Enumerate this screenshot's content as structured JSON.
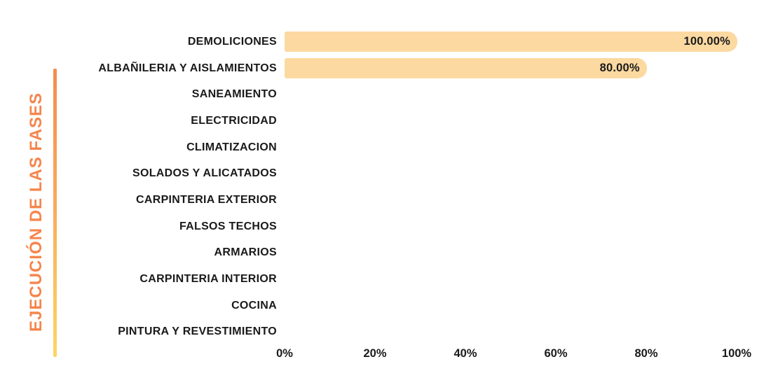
{
  "title": {
    "text": "EJECUCIÓN DE LAS FASES"
  },
  "colors": {
    "background": "#FFFFFF",
    "bar_fill": "#FCD9A0",
    "title_text": "#F5854C",
    "accent_line_top": "#F58B4F",
    "accent_line_mid": "#F9A95A",
    "accent_line_bottom": "#FBD666",
    "label_text": "#1A1A1A"
  },
  "chart_data": {
    "type": "bar",
    "orientation": "horizontal",
    "title": "EJECUCIÓN DE LAS FASES",
    "categories": [
      "DEMOLICIONES",
      "ALBAÑILERIA Y AISLAMIENTOS",
      "SANEAMIENTO",
      "ELECTRICIDAD",
      "CLIMATIZACION",
      "SOLADOS Y ALICATADOS",
      "CARPINTERIA EXTERIOR",
      "FALSOS TECHOS",
      "ARMARIOS",
      "CARPINTERIA INTERIOR",
      "COCINA",
      "PINTURA Y REVESTIMIENTO"
    ],
    "values": [
      100,
      80,
      0,
      0,
      0,
      0,
      0,
      0,
      0,
      0,
      0,
      0
    ],
    "value_labels": [
      "100.00%",
      "80.00%",
      "",
      "",
      "",
      "",
      "",
      "",
      "",
      "",
      "",
      ""
    ],
    "x_ticks": [
      "0%",
      "20%",
      "40%",
      "60%",
      "80%",
      "100%"
    ],
    "xlim": [
      0,
      100
    ],
    "xlabel": "",
    "ylabel": "EJECUCIÓN DE LAS FASES",
    "grid": false,
    "legend": false
  }
}
